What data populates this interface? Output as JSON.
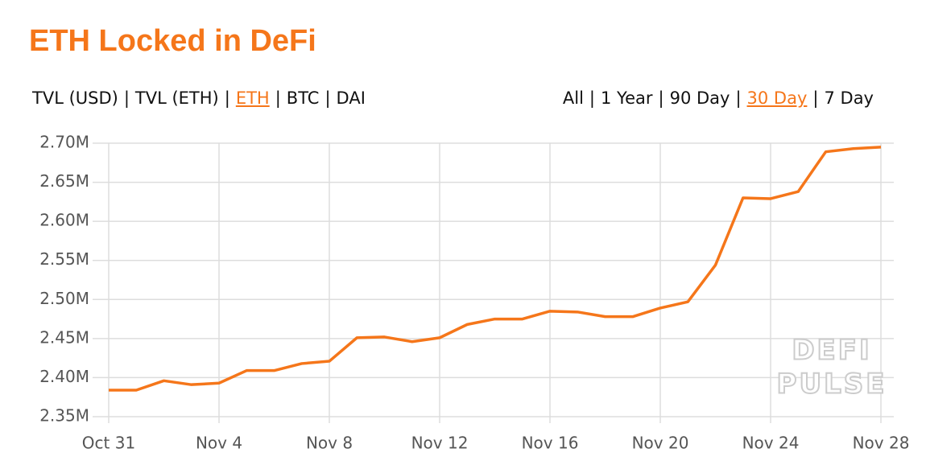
{
  "header": {
    "title": "ETH Locked in DeFi"
  },
  "tabs": {
    "metrics": [
      "TVL (USD)",
      "TVL (ETH)",
      "ETH",
      "BTC",
      "DAI"
    ],
    "active_metric": 2,
    "ranges": [
      "All",
      "1 Year",
      "90 Day",
      "30 Day",
      "7 Day"
    ],
    "active_range": 3,
    "separator": "|"
  },
  "watermark": [
    "DEFI",
    "PULSE"
  ],
  "chart_data": {
    "type": "line",
    "color": "#f5761a",
    "grid": true,
    "categories": [
      "Oct 31",
      null,
      null,
      null,
      "Nov 4",
      null,
      null,
      null,
      "Nov 8",
      null,
      null,
      null,
      "Nov 12",
      null,
      null,
      null,
      "Nov 16",
      null,
      null,
      null,
      "Nov 20",
      null,
      null,
      null,
      "Nov 24",
      null,
      null,
      null,
      "Nov 28"
    ],
    "values": [
      2384000,
      2384000,
      2396000,
      2391000,
      2393000,
      2409000,
      2409000,
      2418000,
      2421000,
      2451000,
      2452000,
      2446000,
      2451000,
      2468000,
      2475000,
      2475000,
      2485000,
      2484000,
      2478000,
      2478000,
      2489000,
      2497000,
      2544000,
      2630000,
      2629000,
      2638000,
      2689000,
      2693000,
      2695000
    ],
    "ylim": [
      2350000,
      2700000
    ],
    "yticks": [
      {
        "value": 2350000,
        "label": "2.35M"
      },
      {
        "value": 2400000,
        "label": "2.40M"
      },
      {
        "value": 2450000,
        "label": "2.45M"
      },
      {
        "value": 2500000,
        "label": "2.50M"
      },
      {
        "value": 2550000,
        "label": "2.55M"
      },
      {
        "value": 2600000,
        "label": "2.60M"
      },
      {
        "value": 2650000,
        "label": "2.65M"
      },
      {
        "value": 2700000,
        "label": "2.70M"
      }
    ]
  }
}
